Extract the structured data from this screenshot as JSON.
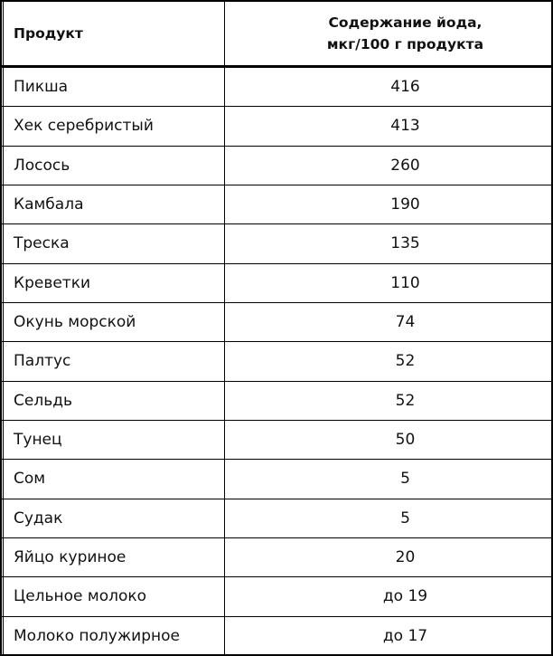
{
  "header": {
    "product": "Продукт",
    "iodine_line1": "Содержание йода,",
    "iodine_line2": "мкг/100 г продукта"
  },
  "rows": [
    {
      "product": "Пикша",
      "value": "416"
    },
    {
      "product": "Хек серебристый",
      "value": "413"
    },
    {
      "product": "Лосось",
      "value": "260"
    },
    {
      "product": "Камбала",
      "value": "190"
    },
    {
      "product": "Треска",
      "value": "135"
    },
    {
      "product": "Креветки",
      "value": "110"
    },
    {
      "product": "Окунь морской",
      "value": "74"
    },
    {
      "product": "Палтус",
      "value": "52"
    },
    {
      "product": "Сельдь",
      "value": "52"
    },
    {
      "product": "Тунец",
      "value": "50"
    },
    {
      "product": "Сом",
      "value": "5"
    },
    {
      "product": "Судак",
      "value": "5"
    },
    {
      "product": "Яйцо куриное",
      "value": "20"
    },
    {
      "product": "Цельное молоко",
      "value": "до 19"
    },
    {
      "product": "Молоко полужирное",
      "value": "до 17"
    }
  ]
}
